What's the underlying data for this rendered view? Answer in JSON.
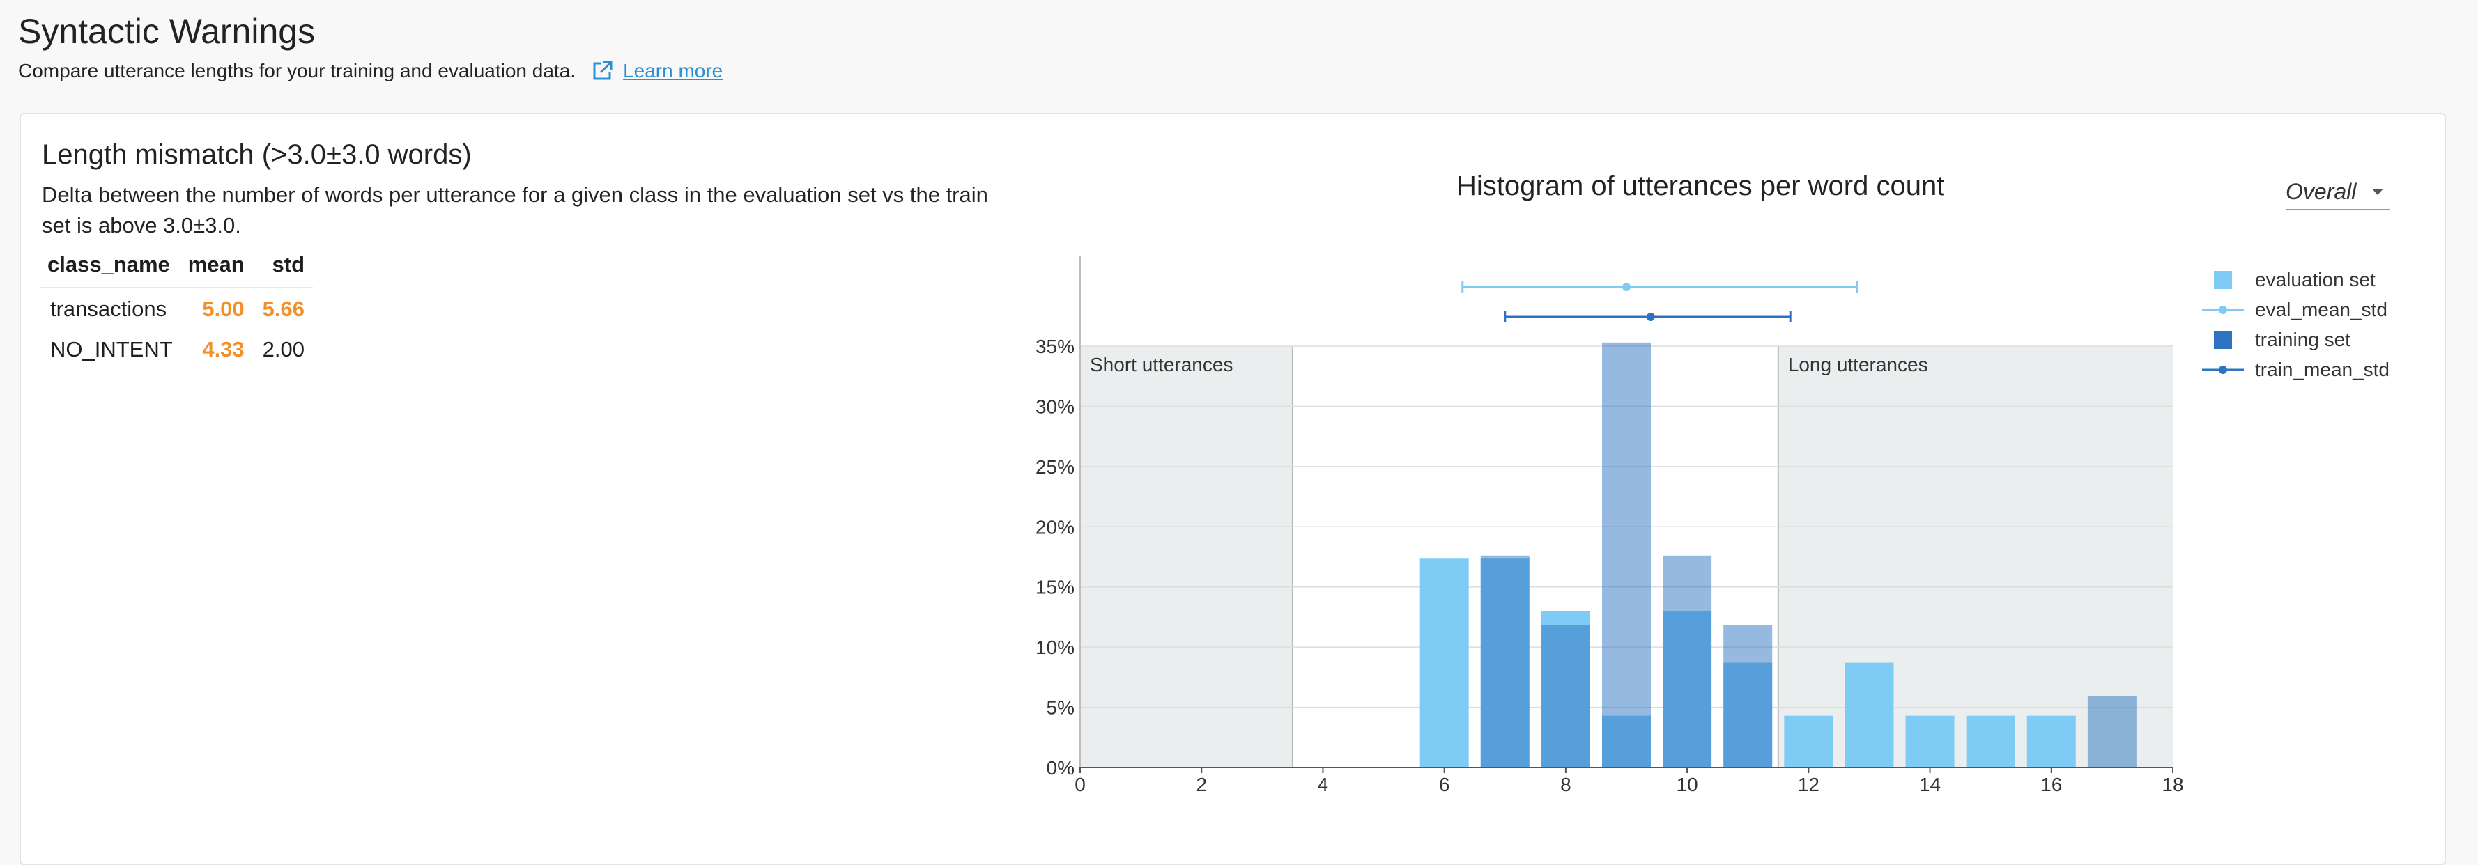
{
  "page": {
    "title": "Syntactic Warnings",
    "subtitle": "Compare utterance lengths for your training and evaluation data.",
    "learn_more": "Learn more"
  },
  "warning": {
    "title": "Length mismatch (>3.0±3.0 words)",
    "description": "Delta between the number of words per utterance for a given class in the evaluation set vs the train set is above 3.0±3.0.",
    "table": {
      "headers": [
        "class_name",
        "mean",
        "std"
      ],
      "rows": [
        {
          "class_name": "transactions",
          "mean": "5.00",
          "std": "5.66",
          "mean_warn": true,
          "std_warn": true
        },
        {
          "class_name": "NO_INTENT",
          "mean": "4.33",
          "std": "2.00",
          "mean_warn": true,
          "std_warn": false
        }
      ]
    }
  },
  "chart_title": "Histogram of utterances per word count",
  "dropdown": {
    "selected": "Overall"
  },
  "legend": [
    {
      "label": "evaluation set",
      "icon": "square",
      "color": "#7ecbf5"
    },
    {
      "label": "eval_mean_std",
      "icon": "line-dot",
      "color": "#7ecbf5"
    },
    {
      "label": "training set",
      "icon": "square",
      "color": "#2d73bf"
    },
    {
      "label": "train_mean_std",
      "icon": "line-dot",
      "color": "#2d73bf"
    }
  ],
  "colors": {
    "evaluation": "#7ecbf5",
    "training": "#2d73bf",
    "region": "#ebeeee"
  },
  "chart_data": {
    "type": "bar",
    "title": "Histogram of utterances per word count",
    "xlim": [
      0,
      18
    ],
    "ylim": [
      0,
      35
    ],
    "x_ticks": [
      0,
      2,
      4,
      6,
      8,
      10,
      12,
      14,
      16,
      18
    ],
    "y_ticks": [
      "0%",
      "5%",
      "10%",
      "15%",
      "20%",
      "25%",
      "30%",
      "35%"
    ],
    "regions": [
      {
        "label": "Short utterances",
        "from": 0,
        "to": 3.5
      },
      {
        "label": "Long utterances",
        "from": 11.5,
        "to": 18
      }
    ],
    "series": [
      {
        "name": "evaluation set",
        "x": [
          6,
          7,
          8,
          9,
          10,
          11,
          12,
          13,
          14,
          15,
          16,
          17
        ],
        "values": [
          17.4,
          17.4,
          13.0,
          4.3,
          13.0,
          8.7,
          4.3,
          8.7,
          4.3,
          4.3,
          4.3,
          0
        ]
      },
      {
        "name": "training set",
        "x": [
          6,
          7,
          8,
          9,
          10,
          11,
          12,
          13,
          14,
          15,
          16,
          17
        ],
        "values": [
          0,
          17.6,
          11.8,
          35.3,
          17.6,
          11.8,
          0,
          0,
          0,
          0,
          0,
          5.9
        ]
      }
    ],
    "mean_std": [
      {
        "name": "eval_mean_std",
        "mean": 9.0,
        "low": 6.3,
        "high": 12.8
      },
      {
        "name": "train_mean_std",
        "mean": 9.4,
        "low": 7.0,
        "high": 11.7
      }
    ]
  }
}
